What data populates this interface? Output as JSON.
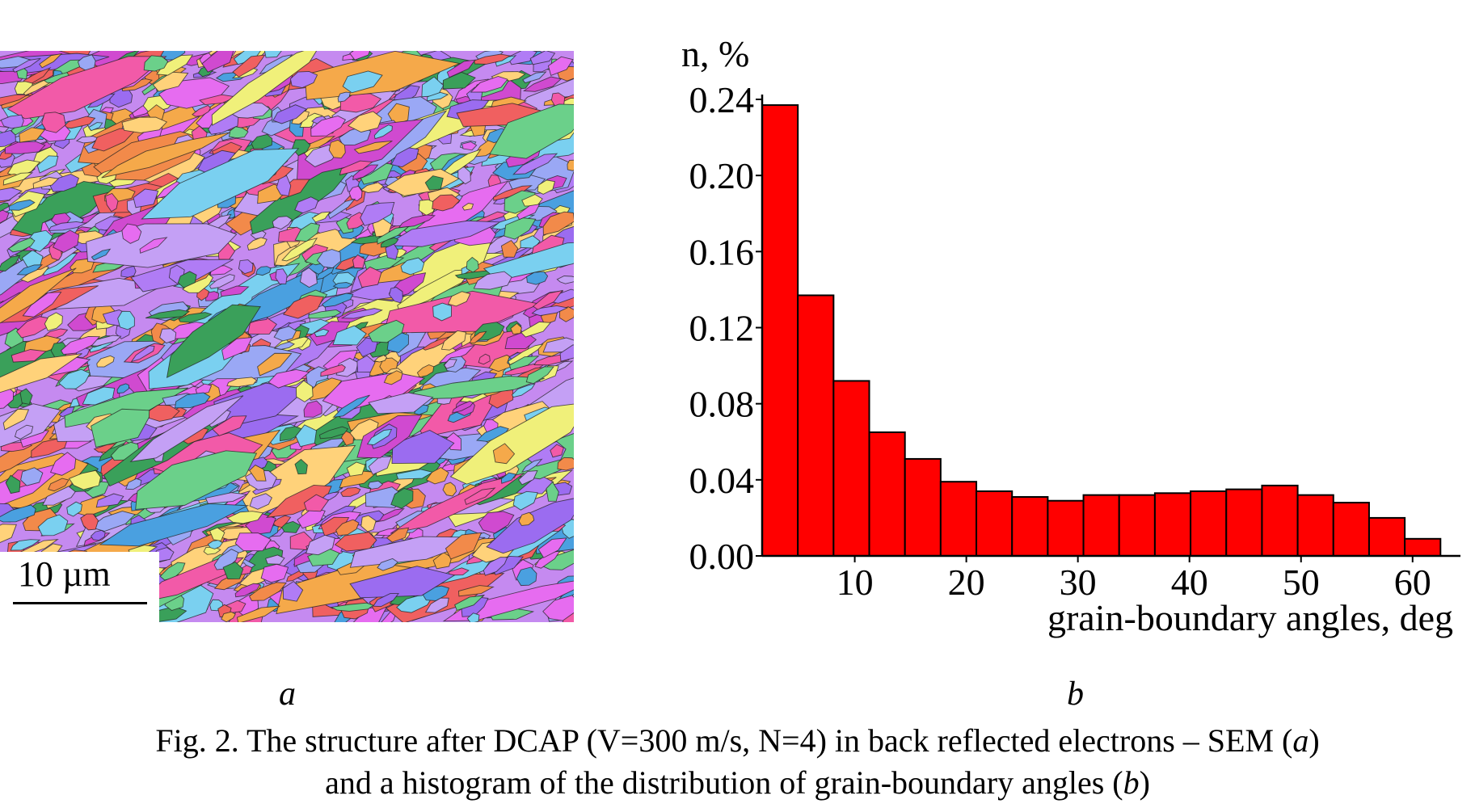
{
  "micrograph": {
    "scale_bar_label": "10 µm",
    "palette": [
      "#9b6cf0",
      "#b07cf5",
      "#e66cf0",
      "#f25aa8",
      "#f06060",
      "#f28a4a",
      "#f5a94a",
      "#ffd27a",
      "#7ad0f0",
      "#9aa8f5",
      "#c4a0f5",
      "#6bd08a",
      "#3aa05a",
      "#f0f07a",
      "#4aa0e0",
      "#d04ad0"
    ]
  },
  "chart_data": {
    "type": "bar",
    "ylabel": "n, %",
    "xlabel": "grain-boundary angles, deg",
    "bar_color": "#ff0000",
    "bin_width": 3.2,
    "x_start": 1.7,
    "xlim": [
      1.7,
      64.0
    ],
    "ylim": [
      0.0,
      0.24
    ],
    "yticks": [
      "0.00",
      "0.04",
      "0.08",
      "0.12",
      "0.16",
      "0.20",
      "0.24"
    ],
    "xticks": [
      "10",
      "20",
      "30",
      "40",
      "50",
      "60"
    ],
    "values": [
      0.237,
      0.137,
      0.092,
      0.065,
      0.051,
      0.039,
      0.034,
      0.031,
      0.029,
      0.032,
      0.032,
      0.033,
      0.034,
      0.035,
      0.037,
      0.032,
      0.028,
      0.02,
      0.009
    ],
    "grid": false,
    "legend": "none"
  },
  "panel_labels": {
    "left": "a",
    "right": "b"
  },
  "caption": {
    "line1_main": "Fig. 2. The structure after DCAP (V=300 m/s, N=4) in back reflected electrons – SEM (",
    "line1_italic": "a",
    "line1_end": ")",
    "line2_main": "and a histogram of the distribution of grain-boundary angles (",
    "line2_italic": "b",
    "line2_end": ")"
  }
}
